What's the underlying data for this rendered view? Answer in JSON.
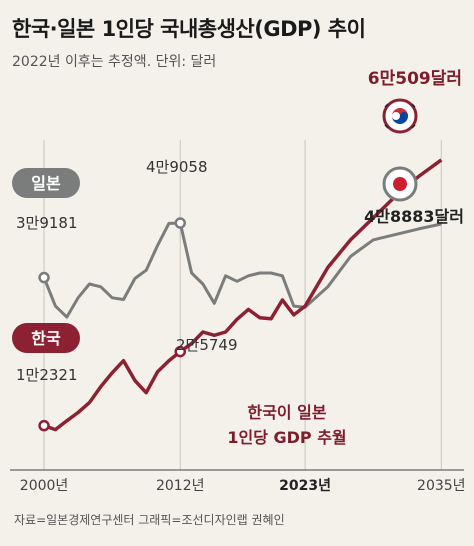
{
  "title": "한국·일본 1인당 국내총생산(GDP) 추이",
  "subtitle": "2022년 이후는 추정액. 단위: 달러",
  "source": "자료=일본경제연구센터   그래픽=조선디자인랩 권혜인",
  "annotation": [
    "한국이 일본",
    "1인당 GDP 추월"
  ],
  "chart_data": {
    "type": "line",
    "x_ticks": [
      "2000년",
      "2012년",
      "2023년",
      "2035년"
    ],
    "x_tick_values": [
      2000,
      2012,
      2023,
      2035
    ],
    "x_tick_bold": "2023년",
    "xlim": [
      1997,
      2037
    ],
    "ylim": [
      5000,
      75000
    ],
    "series": [
      {
        "name": "일본",
        "color": "#7a7d7b",
        "start_label": "3만9181",
        "peak_label": "4만9058",
        "end_label": "4만8883달러",
        "x": [
          2000,
          2001,
          2002,
          2003,
          2004,
          2005,
          2006,
          2007,
          2008,
          2009,
          2010,
          2011,
          2012,
          2013,
          2014,
          2015,
          2016,
          2017,
          2018,
          2019,
          2020,
          2021,
          2022,
          2023,
          2025,
          2027,
          2029,
          2031,
          2033,
          2035
        ],
        "values": [
          39181,
          34000,
          32000,
          35500,
          38000,
          37500,
          35500,
          35200,
          39000,
          40500,
          45000,
          49000,
          49058,
          40000,
          38000,
          34500,
          39500,
          38500,
          39500,
          40000,
          40000,
          39500,
          34000,
          33800,
          37500,
          43000,
          46000,
          47000,
          48000,
          48883
        ]
      },
      {
        "name": "한국",
        "color": "#8b2133",
        "start_label": "1만2321",
        "mid_label": "2만5749",
        "end_label": "6만509달러",
        "x": [
          2000,
          2001,
          2002,
          2003,
          2004,
          2005,
          2006,
          2007,
          2008,
          2009,
          2010,
          2011,
          2012,
          2013,
          2014,
          2015,
          2016,
          2017,
          2018,
          2019,
          2020,
          2021,
          2022,
          2023,
          2025,
          2027,
          2029,
          2031,
          2033,
          2035
        ],
        "values": [
          12321,
          11600,
          13200,
          14700,
          16500,
          19400,
          21900,
          24100,
          20500,
          18300,
          22100,
          24100,
          25749,
          27200,
          29300,
          28700,
          29300,
          31600,
          33400,
          31900,
          31700,
          35100,
          32400,
          34000,
          41000,
          46000,
          50000,
          54000,
          57500,
          60509
        ]
      }
    ]
  }
}
